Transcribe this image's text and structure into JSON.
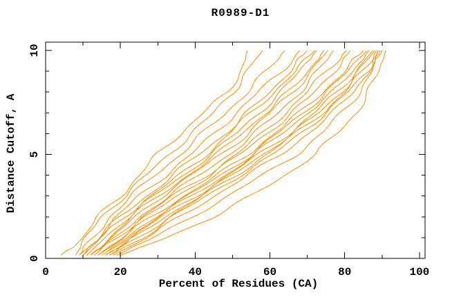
{
  "title": "R0989-D1",
  "chart_data": {
    "type": "line",
    "title": "R0989-D1",
    "xlabel": "Percent of Residues (CA)",
    "ylabel": "Distance Cutoff, A",
    "xlim": [
      0,
      101.5
    ],
    "ylim": [
      0,
      10.4
    ],
    "x_ticks_major": [
      0,
      20,
      40,
      60,
      80,
      100
    ],
    "x_ticks_minor": [
      10,
      30,
      50,
      70,
      90
    ],
    "y_ticks_major": [
      0,
      5,
      10
    ],
    "y_ticks_minor": [
      1,
      2,
      3,
      4,
      6,
      7,
      8,
      9
    ],
    "grid": false,
    "legend": "none",
    "line_color": "#ff8c00",
    "axis_color": "#000000",
    "cutoffs": [
      0.15,
      1,
      2,
      3,
      4,
      5,
      6,
      7,
      8,
      9,
      10
    ],
    "series": [
      [
        4,
        10,
        14,
        20,
        25,
        30,
        36,
        42,
        49,
        52,
        54
      ],
      [
        8,
        11,
        15,
        21,
        27,
        33,
        39,
        45,
        50,
        54,
        58
      ],
      [
        9,
        13,
        17,
        23,
        29,
        36,
        42,
        48,
        54,
        59,
        64
      ],
      [
        10,
        14,
        19,
        25,
        32,
        39,
        45,
        51,
        57,
        63,
        68
      ],
      [
        9,
        14,
        20,
        27,
        34,
        41,
        48,
        54,
        60,
        65,
        70
      ],
      [
        10,
        15,
        21,
        28,
        36,
        43,
        49,
        55,
        61,
        67,
        72
      ],
      [
        11,
        16,
        22,
        29,
        37,
        44,
        51,
        57,
        63,
        68,
        72.5
      ],
      [
        12,
        17,
        23,
        30,
        38,
        46,
        52,
        59,
        65,
        70,
        74.5
      ],
      [
        12,
        18,
        24,
        31,
        39,
        47,
        54,
        60,
        66,
        71,
        75.5
      ],
      [
        13,
        19,
        25,
        33,
        41,
        49,
        56,
        62,
        68,
        73,
        77
      ],
      [
        13,
        19,
        26,
        34,
        43,
        51,
        58,
        64,
        70,
        75,
        80.5
      ],
      [
        14,
        20,
        27,
        35,
        44,
        52,
        59,
        66,
        72,
        77,
        81.5
      ],
      [
        14,
        21,
        28,
        37,
        46,
        54,
        61,
        68,
        74,
        80,
        85
      ],
      [
        15,
        22,
        29,
        38,
        47,
        55,
        62,
        69,
        75,
        81,
        86
      ],
      [
        15,
        22,
        30,
        39,
        48,
        56,
        63,
        70,
        77,
        82,
        86.5
      ],
      [
        16,
        23,
        31,
        40,
        49,
        57,
        65,
        72,
        78,
        83,
        87.5
      ],
      [
        16,
        24,
        32,
        41,
        50,
        58,
        66,
        73,
        79,
        84,
        88
      ],
      [
        17,
        25,
        33,
        42,
        51,
        59,
        67,
        74,
        80,
        85,
        88.5
      ],
      [
        17,
        26,
        34,
        43,
        52,
        61,
        68,
        75,
        81,
        86,
        89
      ],
      [
        18,
        27,
        36,
        45,
        54,
        63,
        70,
        77,
        82,
        86.5,
        89.5
      ],
      [
        19,
        29,
        39,
        49,
        58,
        67,
        74,
        79,
        84,
        87.5,
        90
      ],
      [
        20,
        32,
        45,
        55,
        64,
        72,
        78,
        83,
        86.5,
        89,
        91
      ]
    ]
  }
}
